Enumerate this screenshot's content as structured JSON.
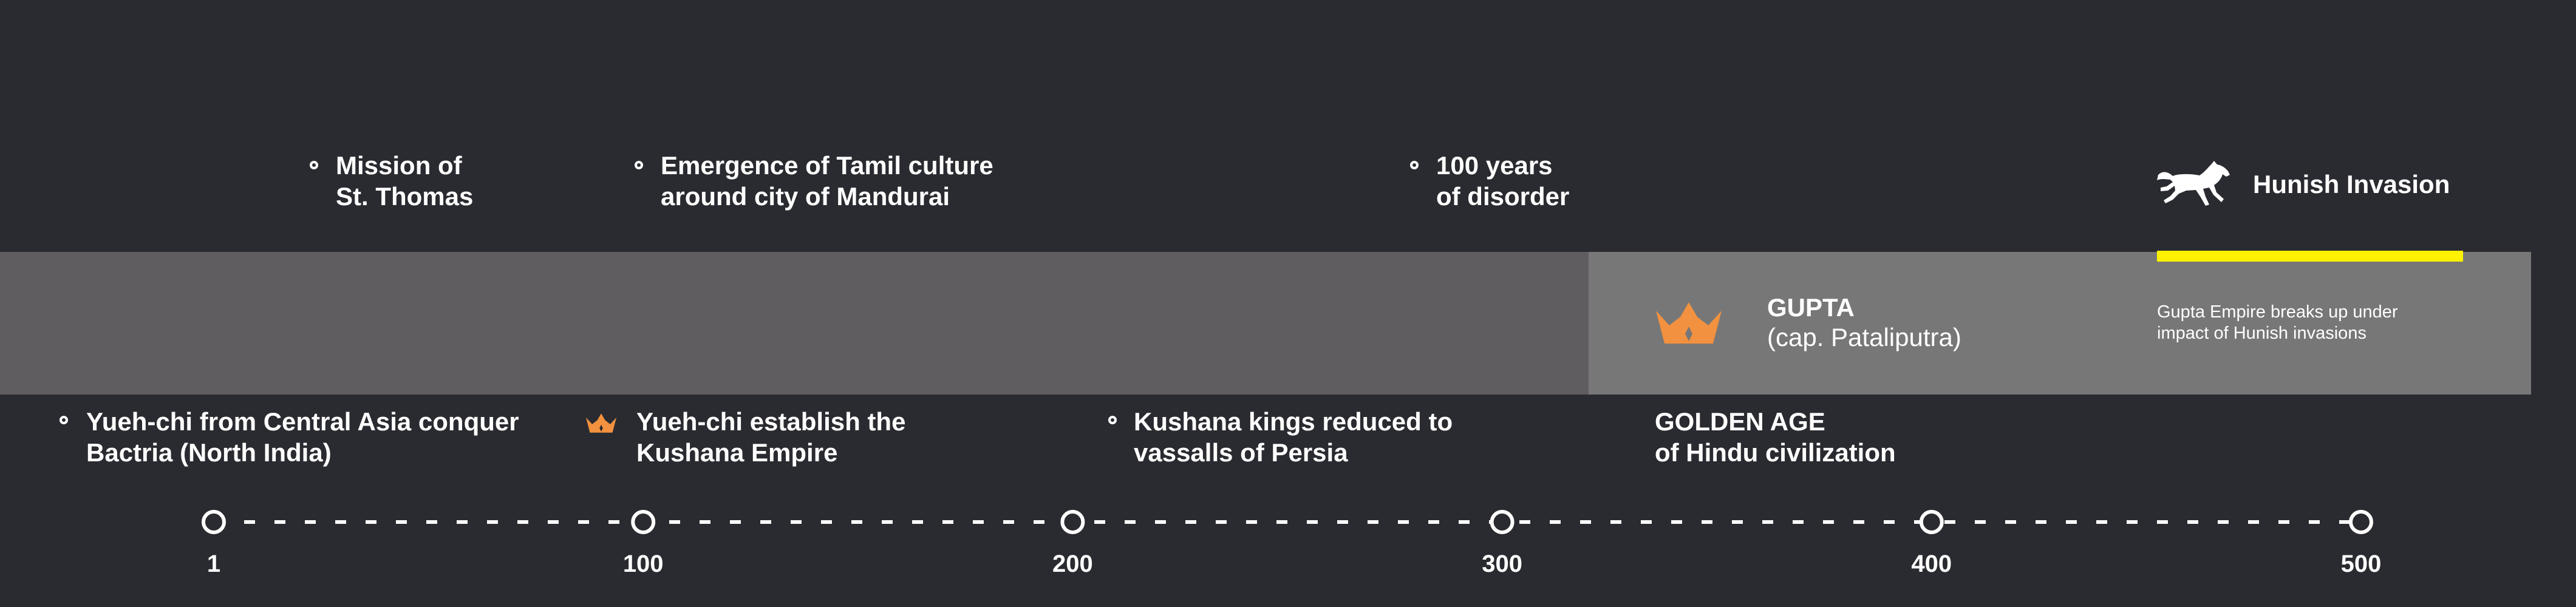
{
  "colors": {
    "background": "#2a2b30",
    "band_dark": "#5f5d5f",
    "band_light": "#777777",
    "accent_orange": "#f2913f",
    "highlight_yellow": "#fff200",
    "text": "#ffffff"
  },
  "top_events": [
    {
      "lines": [
        "Mission of",
        "St. Thomas"
      ]
    },
    {
      "lines": [
        "Emergence of Tamil culture",
        "around city of Mandurai"
      ]
    },
    {
      "lines": [
        "100 years",
        "of disorder"
      ]
    }
  ],
  "hunish": {
    "label": "Hunish Invasion",
    "icon": "horse-icon"
  },
  "gupta": {
    "icon": "crown-icon",
    "title": "GUPTA",
    "subtitle": "(cap. Pataliputra)",
    "note": [
      "Gupta Empire breaks up under",
      "impact of Hunish invasions"
    ]
  },
  "bottom_events": [
    {
      "lines": [
        "Yueh-chi from Central Asia conquer",
        "Bactria (North India)"
      ],
      "marker": "circle"
    },
    {
      "lines": [
        "Yueh-chi establish the",
        "Kushana Empire"
      ],
      "marker": "crown-icon"
    },
    {
      "lines": [
        "Kushana kings reduced to",
        "vassalls of Persia"
      ],
      "marker": "circle"
    },
    {
      "lines": [
        "GOLDEN AGE",
        "of Hindu civilization"
      ],
      "marker": "none"
    }
  ],
  "timeline": {
    "ticks": [
      "1",
      "100",
      "200",
      "300",
      "400",
      "500"
    ]
  }
}
